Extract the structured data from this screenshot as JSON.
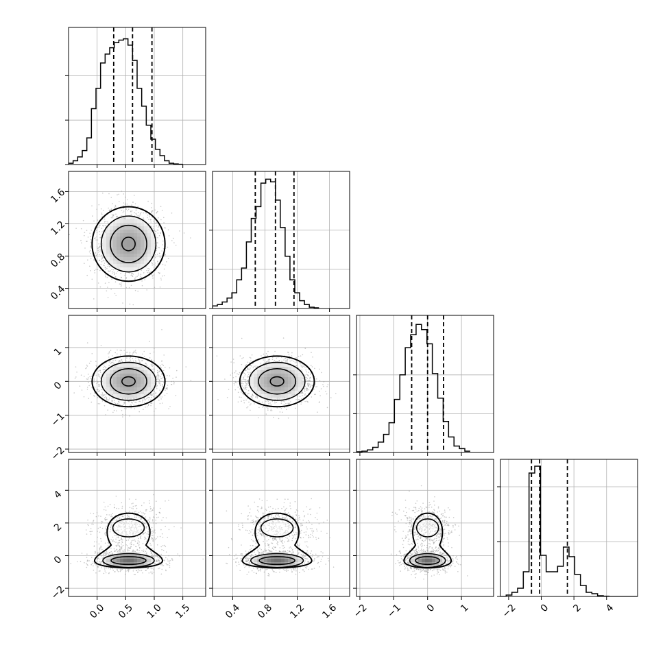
{
  "chart_data": {
    "type": "corner",
    "parameters": [
      {
        "range": [
          -0.5,
          1.9
        ],
        "ticks": [
          {
            "v": 0.0,
            "label": "0.0"
          },
          {
            "v": 0.5,
            "label": "0.5"
          },
          {
            "v": 1.0,
            "label": "1.0"
          },
          {
            "v": 1.5,
            "label": "1.5"
          }
        ],
        "quantiles": [
          0.29,
          0.62,
          0.96
        ],
        "hist": {
          "start": -0.5,
          "width": 0.08,
          "counts": [
            0.01,
            0.03,
            0.06,
            0.11,
            0.21,
            0.44,
            0.6,
            0.8,
            0.87,
            0.92,
            0.96,
            0.98,
            0.99,
            0.94,
            0.82,
            0.6,
            0.46,
            0.31,
            0.2,
            0.12,
            0.07,
            0.03,
            0.01,
            0.005,
            0.002
          ],
          "ymax": 1.08,
          "yticks": [
            0.0,
            0.35,
            0.7
          ]
        }
      },
      {
        "range": [
          0.15,
          1.85
        ],
        "ticks": [
          {
            "v": 0.4,
            "label": "0.4"
          },
          {
            "v": 0.8,
            "label": "0.8"
          },
          {
            "v": 1.2,
            "label": "1.2"
          },
          {
            "v": 1.6,
            "label": "1.6"
          }
        ],
        "quantiles": [
          0.68,
          0.93,
          1.16
        ],
        "hist": {
          "start": 0.15,
          "width": 0.06,
          "counts": [
            0.02,
            0.03,
            0.05,
            0.08,
            0.12,
            0.22,
            0.31,
            0.51,
            0.69,
            0.78,
            0.96,
            0.99,
            0.97,
            0.83,
            0.62,
            0.4,
            0.22,
            0.12,
            0.06,
            0.03,
            0.01,
            0.005
          ],
          "ymax": 1.05,
          "yticks": [
            0.0,
            0.3,
            0.6
          ]
        }
      },
      {
        "range": [
          -2.1,
          1.95
        ],
        "ticks": [
          {
            "v": -2,
            "label": "−2"
          },
          {
            "v": -1,
            "label": "−1"
          },
          {
            "v": 0,
            "label": "0"
          },
          {
            "v": 1,
            "label": "1"
          }
        ],
        "quantiles": [
          -0.47,
          0.0,
          0.47
        ],
        "hist": {
          "start": -2.1,
          "width": 0.16,
          "counts": [
            0.005,
            0.01,
            0.02,
            0.04,
            0.08,
            0.14,
            0.23,
            0.41,
            0.6,
            0.81,
            0.91,
            0.99,
            0.95,
            0.84,
            0.61,
            0.42,
            0.24,
            0.12,
            0.05,
            0.03,
            0.01
          ],
          "ymax": 1.06,
          "yticks": [
            0.0,
            0.3,
            0.6
          ]
        }
      },
      {
        "range": [
          -2.5,
          5.9
        ],
        "ticks": [
          {
            "v": -2,
            "label": "−2"
          },
          {
            "v": 0,
            "label": "0"
          },
          {
            "v": 2,
            "label": "2"
          },
          {
            "v": 4,
            "label": "4"
          }
        ],
        "quantiles": [
          -0.6,
          -0.1,
          1.6
        ],
        "hist": {
          "start": -2.5,
          "width": 0.35,
          "counts": [
            0.0,
            0.01,
            0.03,
            0.06,
            0.18,
            0.9,
            0.95,
            0.3,
            0.18,
            0.18,
            0.22,
            0.36,
            0.29,
            0.16,
            0.08,
            0.03,
            0.02,
            0.005,
            0.002,
            0.0,
            0.0,
            0.0,
            0.0,
            0.0
          ],
          "ymax": 1.0,
          "yticks": [
            0.0,
            0.4,
            0.8
          ]
        }
      }
    ],
    "distribution": {
      "means": [
        0.55,
        0.95,
        0.0
      ],
      "sigmas": [
        0.29,
        0.21,
        0.34
      ],
      "modes": [
        {
          "mean": -0.3,
          "sigma": 0.32,
          "weight": 0.62
        },
        {
          "mean": 1.7,
          "sigma": 0.65,
          "weight": 0.38
        }
      ],
      "samples": 1500
    }
  }
}
